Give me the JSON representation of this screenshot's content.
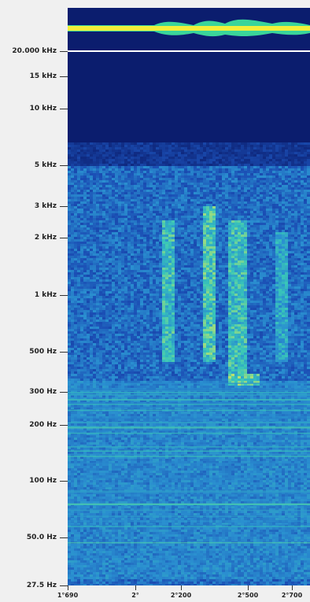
{
  "chart_data": {
    "type": "heatmap",
    "title": "",
    "xlabel": "",
    "ylabel": "",
    "y_scale": "log",
    "y_tick_labels": [
      "20.000 kHz",
      "15 kHz",
      "10 kHz",
      "5 kHz",
      "3 kHz",
      "2 kHz",
      "1 kHz",
      "500 Hz",
      "300 Hz",
      "200 Hz",
      "100 Hz",
      "50.0 Hz",
      "27.5 Hz"
    ],
    "y_ticks_hz": [
      20000,
      15000,
      10000,
      5000,
      3000,
      2000,
      1000,
      500,
      300,
      200,
      100,
      50,
      27.5
    ],
    "x_tick_labels": [
      "1°690",
      "2°",
      "2°200",
      "2°500",
      "2°700"
    ],
    "colormap": [
      "#0b1d6e",
      "#1b4fb5",
      "#2a8fd0",
      "#39c7b8",
      "#bfe36b",
      "#fff35a"
    ],
    "top_band": {
      "label": "",
      "color": "#f3ef3a",
      "edge_color": "#3ad59a"
    },
    "energy_regions": [
      {
        "x_from": 0.0,
        "x_to": 1.0,
        "f_low_hz": 30,
        "f_high_hz": 350,
        "intensity": 0.45
      },
      {
        "x_from": 0.38,
        "x_to": 0.44,
        "f_low_hz": 450,
        "f_high_hz": 2500,
        "intensity": 0.7
      },
      {
        "x_from": 0.55,
        "x_to": 0.6,
        "f_low_hz": 450,
        "f_high_hz": 3000,
        "intensity": 0.75
      },
      {
        "x_from": 0.66,
        "x_to": 0.73,
        "f_low_hz": 350,
        "f_high_hz": 2500,
        "intensity": 0.7
      },
      {
        "x_from": 0.85,
        "x_to": 0.9,
        "f_low_hz": 450,
        "f_high_hz": 2200,
        "intensity": 0.6
      },
      {
        "x_from": 0.66,
        "x_to": 0.78,
        "f_low_hz": 330,
        "f_high_hz": 380,
        "intensity": 0.8
      }
    ]
  }
}
